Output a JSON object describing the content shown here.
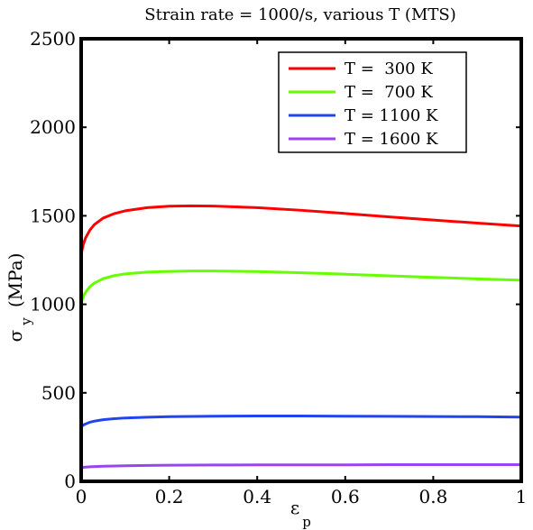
{
  "chart_data": {
    "type": "line",
    "title": "Strain rate = 1000/s, various T (MTS)",
    "xlabel": {
      "symbol": "ε",
      "subscript": "p"
    },
    "ylabel": {
      "symbol": "σ",
      "subscript": "y",
      "unit": "(MPa)"
    },
    "xlim": [
      0,
      1
    ],
    "ylim": [
      0,
      2500
    ],
    "xticks": [
      0,
      0.2,
      0.4,
      0.6,
      0.8,
      1
    ],
    "xtick_labels": [
      "0",
      "0.2",
      "0.4",
      "0.6",
      "0.8",
      "1"
    ],
    "yticks": [
      0,
      500,
      1000,
      1500,
      2000,
      2500
    ],
    "ytick_labels": [
      "0",
      "500",
      "1000",
      "1500",
      "2000",
      "2500"
    ],
    "grid": false,
    "legend_position": "top-right",
    "series": [
      {
        "name": "T =  300 K",
        "color": "#ff0000",
        "x": [
          0,
          0.005,
          0.01,
          0.02,
          0.03,
          0.05,
          0.075,
          0.1,
          0.15,
          0.2,
          0.25,
          0.3,
          0.4,
          0.5,
          0.6,
          0.7,
          0.8,
          0.9,
          1.0
        ],
        "y": [
          1285,
          1340,
          1375,
          1420,
          1450,
          1487,
          1512,
          1528,
          1546,
          1554,
          1556,
          1555,
          1546,
          1531,
          1513,
          1494,
          1476,
          1459,
          1442
        ]
      },
      {
        "name": "T =  700 K",
        "color": "#66ff00",
        "x": [
          0,
          0.005,
          0.01,
          0.02,
          0.03,
          0.05,
          0.075,
          0.1,
          0.15,
          0.2,
          0.25,
          0.3,
          0.4,
          0.5,
          0.6,
          0.7,
          0.8,
          0.9,
          1.0
        ],
        "y": [
          1010,
          1045,
          1068,
          1100,
          1120,
          1145,
          1162,
          1172,
          1182,
          1186,
          1188,
          1188,
          1185,
          1178,
          1170,
          1161,
          1152,
          1144,
          1136
        ]
      },
      {
        "name": "T = 1100 K",
        "color": "#2244ee",
        "x": [
          0,
          0.005,
          0.01,
          0.02,
          0.03,
          0.05,
          0.075,
          0.1,
          0.15,
          0.2,
          0.3,
          0.4,
          0.5,
          0.6,
          0.7,
          0.8,
          0.9,
          1.0
        ],
        "y": [
          308,
          318,
          324,
          334,
          340,
          348,
          354,
          358,
          362,
          365,
          368,
          369,
          369,
          368,
          367,
          366,
          365,
          363
        ]
      },
      {
        "name": "T = 1600 K",
        "color": "#9944ee",
        "x": [
          0,
          0.01,
          0.02,
          0.05,
          0.1,
          0.15,
          0.2,
          0.3,
          0.4,
          0.5,
          0.6,
          0.7,
          0.8,
          0.9,
          1.0
        ],
        "y": [
          78,
          80,
          82,
          85,
          88,
          90,
          91,
          92,
          93,
          93,
          93,
          94,
          94,
          94,
          94
        ]
      }
    ]
  }
}
